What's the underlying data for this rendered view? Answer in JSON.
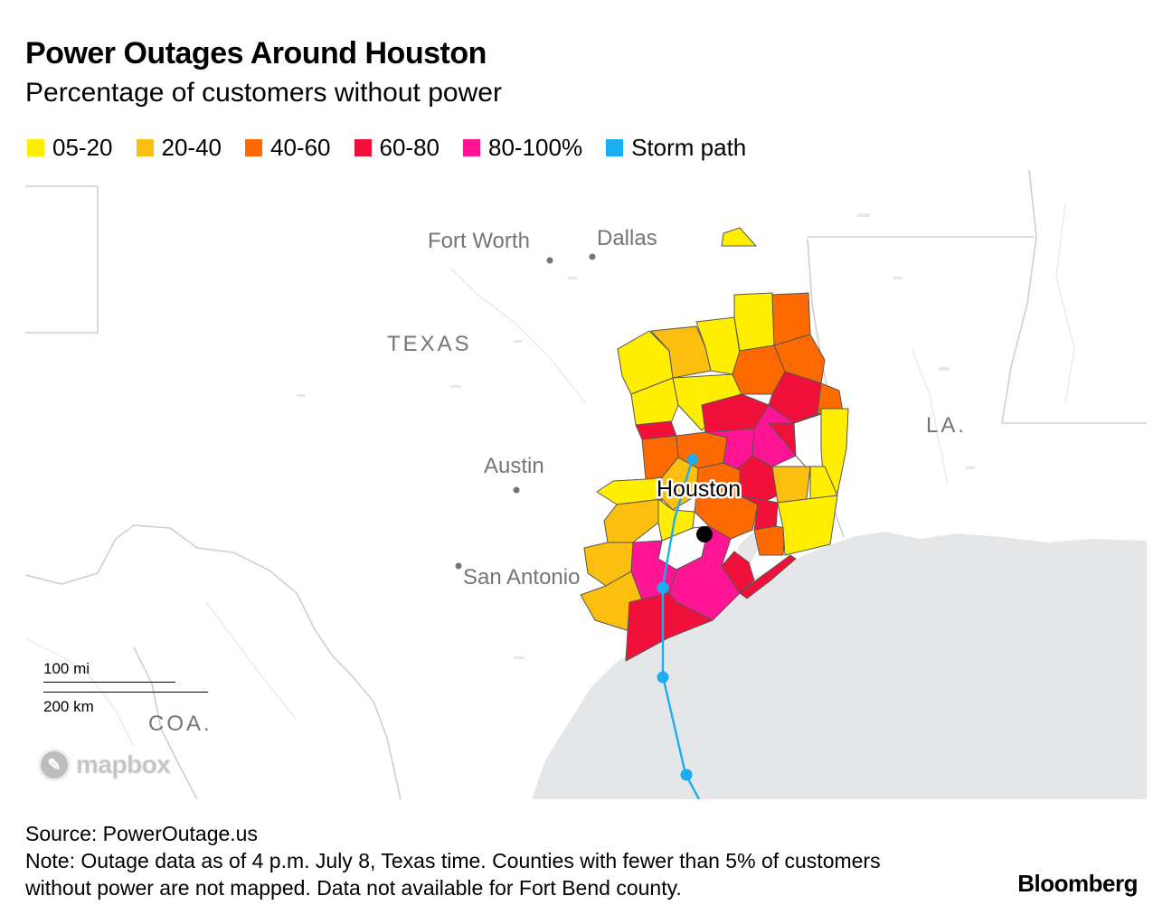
{
  "title": "Power Outages Around Houston",
  "subtitle": "Percentage of customers without power",
  "legend": [
    {
      "label": "05-20",
      "color": "#ffee00"
    },
    {
      "label": "20-40",
      "color": "#fcbf10"
    },
    {
      "label": "40-60",
      "color": "#ff6a00"
    },
    {
      "label": "60-80",
      "color": "#f0103a"
    },
    {
      "label": "80-100%",
      "color": "#ff1493"
    },
    {
      "label": "Storm path",
      "color": "#1aaef0"
    }
  ],
  "map": {
    "region_labels": {
      "texas": "TEXAS",
      "louisiana": "LA.",
      "coahuila": "COA."
    },
    "cities": {
      "fort_worth": "Fort Worth",
      "dallas": "Dallas",
      "austin": "Austin",
      "san_antonio": "San Antonio",
      "houston": "Houston"
    },
    "scale": {
      "miles": "100 mi",
      "km": "200 km"
    },
    "attribution": "mapbox",
    "storm_color": "#1aaef0",
    "water_color": "#e5e6e8",
    "no_data_color": "#ffffff"
  },
  "footer": {
    "source": "Source: PowerOutage.us",
    "note": "Note: Outage data as of 4 p.m. July 8, Texas time. Counties with fewer than 5% of customers without power are not mapped. Data not available for Fort Bend county."
  },
  "brand": "Bloomberg"
}
